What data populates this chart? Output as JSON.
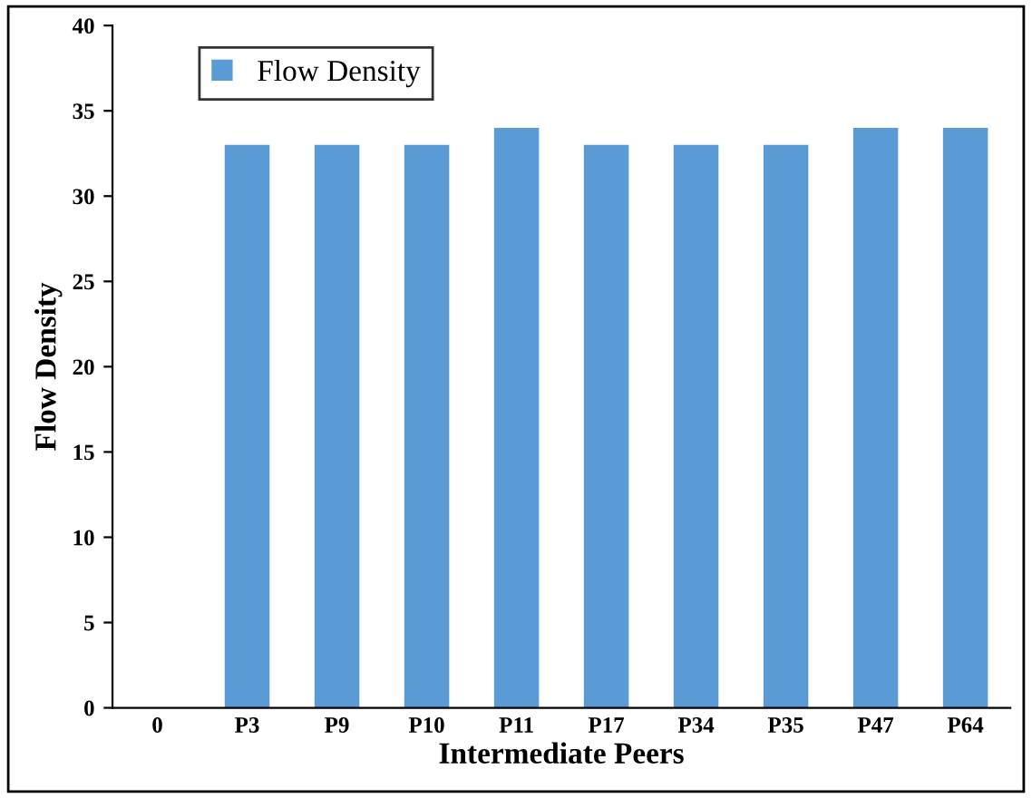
{
  "chart_data": {
    "type": "bar",
    "xlabel": "Intermediate Peers",
    "ylabel": "Flow Density",
    "categories": [
      "0",
      "P3",
      "P9",
      "P10",
      "P11",
      "P17",
      "P34",
      "P35",
      "P47",
      "P64"
    ],
    "series": [
      {
        "name": "Flow Density",
        "color": "#5b9bd5",
        "values": [
          0,
          33,
          33,
          33,
          34,
          33,
          33,
          33,
          34,
          34
        ]
      }
    ],
    "ylim": [
      0,
      40
    ],
    "yticks": [
      0,
      5,
      10,
      15,
      20,
      25,
      30,
      35,
      40
    ],
    "grid": false,
    "legend": "top left"
  }
}
